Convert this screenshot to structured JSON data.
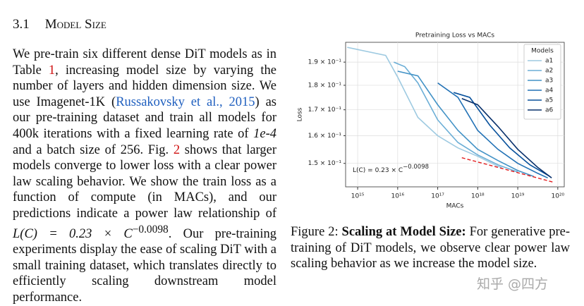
{
  "section": {
    "number": "3.1",
    "title": "Model Size"
  },
  "body": [
    "We pre-train six different dense DiT models as in Table ",
    "1",
    ", increasing model size by varying the number of layers and hidden dimension size. We use Imagenet-1K (",
    "Russakovsky et al., 2015",
    ") as our pre-training dataset and train all models for 400k iterations with a fixed learning rate of ",
    "1e-4",
    " and a batch size of 256. Fig. ",
    "2",
    " shows that larger models converge to lower loss with a clear power law scaling behavior. We show the train loss as a function of compute (in MACs), and our predictions indicate a power law relationship of ",
    "L(C) = 0.23 × C",
    "−0.0098",
    ". Our pre-training experiments display the ease of scaling DiT with a small training dataset, which translates directly to efficiently scaling downstream model performance."
  ],
  "caption": [
    "Figure 2: ",
    "Scaling at Model Size:",
    " For generative pre-training of DiT models, we observe clear power law scaling behavior as we increase the model size."
  ],
  "watermark": "知乎 @四方",
  "chart_data": {
    "type": "line",
    "title": "Pretraining Loss vs MACs",
    "x_label": "MACs",
    "y_label": "Loss",
    "xscale": "log",
    "yscale": "log",
    "grid": true,
    "legend": "upper right",
    "legend_title": "Models",
    "xlim": [
      500000000000000.0,
      1.45e+20
    ],
    "ylim": [
      0.142,
      0.199
    ],
    "xticks": [
      {
        "value": 1000000000000000.0,
        "label": "10¹⁵"
      },
      {
        "value": 1e+16,
        "label": "10¹⁶"
      },
      {
        "value": 1e+17,
        "label": "10¹⁷"
      },
      {
        "value": 1e+18,
        "label": "10¹⁸"
      },
      {
        "value": 1e+19,
        "label": "10¹⁹"
      },
      {
        "value": 1e+20,
        "label": "10²⁰"
      }
    ],
    "yticks": [
      {
        "value": 0.15,
        "label": "1.5 × 10⁻¹"
      },
      {
        "value": 0.16,
        "label": "1.6 × 10⁻¹"
      },
      {
        "value": 0.17,
        "label": "1.7 × 10⁻¹"
      },
      {
        "value": 0.18,
        "label": "1.8 × 10⁻¹"
      },
      {
        "value": 0.19,
        "label": "1.9 × 10⁻¹"
      }
    ],
    "series": [
      {
        "name": "a1",
        "color": "#9ecae1",
        "x": [
          550000000000000.0,
          5000000000000000.0,
          1e+16,
          3.2e+16,
          1e+17,
          3.2e+17,
          1e+18,
          3.2e+18,
          4e+18
        ],
        "values": [
          0.1967,
          0.193,
          0.1835,
          0.167,
          0.16,
          0.1555,
          0.1525,
          0.149,
          0.1485
        ]
      },
      {
        "name": "a2",
        "color": "#6baed6",
        "x": [
          8000000000000000.0,
          1.5e+16,
          3.2e+16,
          1e+17,
          3.2e+17,
          1e+18,
          3.2e+18,
          1e+19
        ],
        "values": [
          0.19,
          0.188,
          0.181,
          0.166,
          0.1575,
          0.153,
          0.1495,
          0.147
        ]
      },
      {
        "name": "a3",
        "color": "#4292c6",
        "x": [
          1e+16,
          3.2e+16,
          1e+17,
          3.2e+17,
          1e+18,
          3.2e+18,
          1e+19,
          2.5e+19
        ],
        "values": [
          0.186,
          0.184,
          0.172,
          0.162,
          0.155,
          0.151,
          0.1475,
          0.1455
        ]
      },
      {
        "name": "a4",
        "color": "#2171b5",
        "x": [
          1e+17,
          3.2e+17,
          1e+18,
          3.2e+18,
          1e+19,
          3.2e+19,
          5.6e+19
        ],
        "values": [
          0.181,
          0.175,
          0.162,
          0.155,
          0.15,
          0.1465,
          0.145
        ]
      },
      {
        "name": "a5",
        "color": "#08519c",
        "x": [
          2.5e+17,
          6.3e+17,
          2e+18,
          6.3e+18,
          2e+19,
          6.3e+19
        ],
        "values": [
          0.177,
          0.175,
          0.164,
          0.1555,
          0.1495,
          0.1455
        ]
      },
      {
        "name": "a6",
        "color": "#08306b",
        "x": [
          4e+17,
          1e+18,
          3.2e+18,
          1e+19,
          3.2e+19,
          7e+19
        ],
        "values": [
          0.1745,
          0.172,
          0.1635,
          0.155,
          0.1485,
          0.145
        ]
      }
    ],
    "fit": {
      "color": "#e31a1c",
      "x": [
        4e+17,
        8e+19
      ],
      "values": [
        0.152,
        0.1435
      ]
    },
    "annotation": {
      "text": "L(C) = 0.23 × C",
      "exponent": "−0.0098"
    }
  }
}
